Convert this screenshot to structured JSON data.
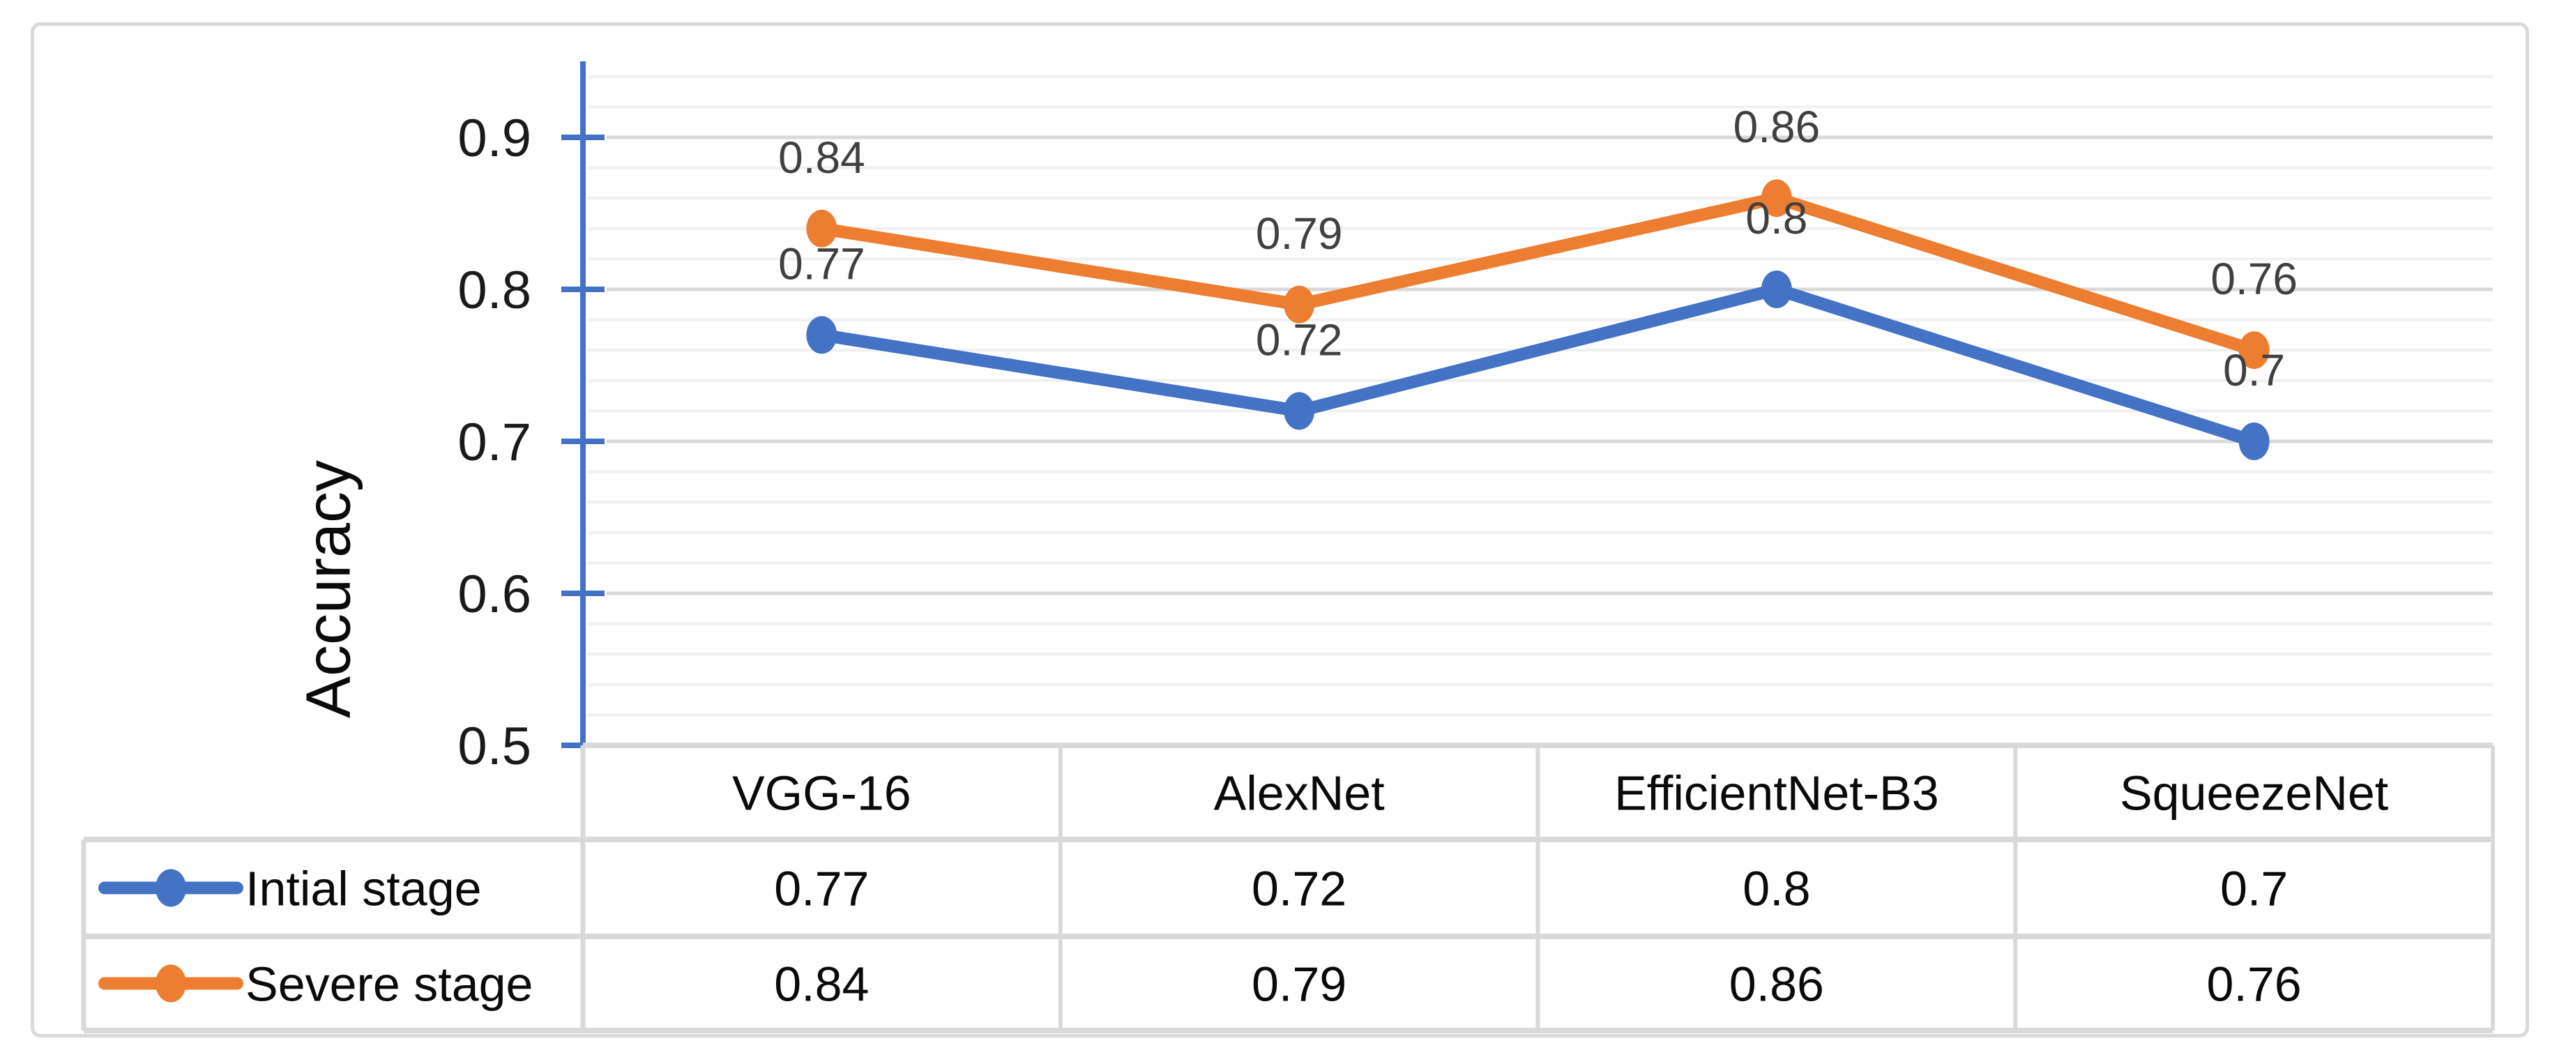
{
  "chart_data": {
    "type": "line",
    "title": "",
    "xlabel": "",
    "ylabel": "Accuracy",
    "categories": [
      "VGG-16",
      "AlexNet",
      "EfficientNet-B3",
      "SqueezeNet"
    ],
    "series": [
      {
        "name": "Intial stage",
        "color": "#4472C4",
        "values": [
          0.77,
          0.72,
          0.8,
          0.7
        ]
      },
      {
        "name": "Severe stage",
        "color": "#ED7D31",
        "values": [
          0.84,
          0.79,
          0.86,
          0.76
        ]
      }
    ],
    "ylim": [
      0.5,
      0.95
    ],
    "y_major_step": 0.1,
    "y_minor_step": 0.02,
    "y_tick_labels": [
      "0.5",
      "0.6",
      "0.7",
      "0.8",
      "0.9"
    ],
    "grid": true,
    "data_labels": true,
    "legend_position": "data-table-left",
    "marker": "circle",
    "colors": {
      "axis": "#4472C4",
      "major_grid": "#D9D9D9",
      "minor_grid": "#F0F0F0",
      "table_border": "#D9D9D9",
      "data_label": "#404040",
      "text": "#0a0a0a"
    }
  }
}
